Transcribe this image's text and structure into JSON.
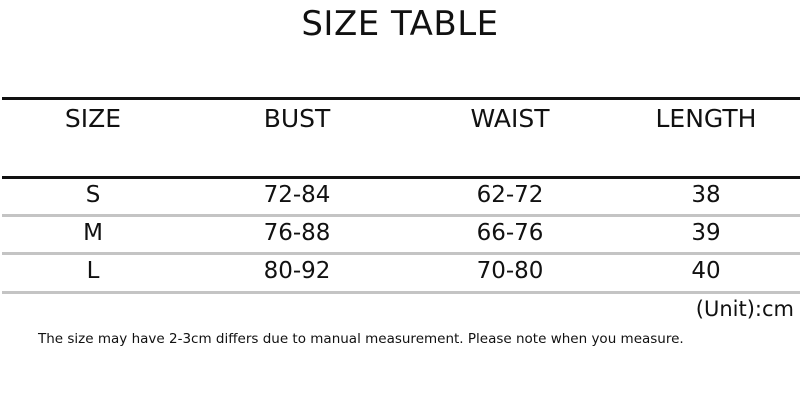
{
  "title": "SIZE TABLE",
  "columns": [
    "SIZE",
    "BUST",
    "WAIST",
    "LENGTH"
  ],
  "rows": [
    [
      "S",
      "72-84",
      "62-72",
      "38"
    ],
    [
      "M",
      "76-88",
      "66-76",
      "39"
    ],
    [
      "L",
      "80-92",
      "70-80",
      "40"
    ]
  ],
  "unit": "(Unit):cm",
  "note": "The size may have 2-3cm differs due to manual measurement. Please note when you measure."
}
